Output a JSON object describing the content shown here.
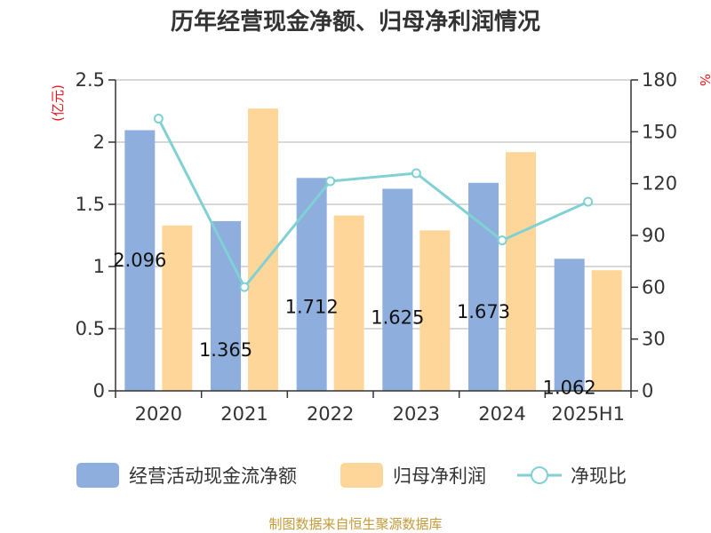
{
  "title": "历年经营现金净额、归母净利润情况",
  "source": "制图数据来自恒生聚源数据库",
  "colors": {
    "bar1": "#8eaedd",
    "bar2": "#ffd699",
    "line": "#80d0d4",
    "grid": "#cccccc",
    "axis": "#333333",
    "unit": "#e8141b",
    "source": "#c49a3a"
  },
  "chart_data": {
    "type": "bar",
    "title": "历年经营现金净额、归母净利润情况",
    "categories": [
      "2020",
      "2021",
      "2022",
      "2023",
      "2024",
      "2025H1"
    ],
    "left_axis": {
      "unit_label": "(亿元)",
      "ylim": [
        0,
        2.5
      ],
      "ticks": [
        "0",
        "0.5",
        "1",
        "1.5",
        "2",
        "2.5"
      ],
      "tick_values": [
        0,
        0.5,
        1,
        1.5,
        2,
        2.5
      ]
    },
    "right_axis": {
      "unit_label": "%",
      "ylim": [
        0,
        180
      ],
      "ticks": [
        "0",
        "30",
        "60",
        "90",
        "120",
        "150",
        "180"
      ],
      "tick_values": [
        0,
        30,
        60,
        90,
        120,
        150,
        180
      ]
    },
    "grid": true,
    "legend_position": "bottom",
    "series": [
      {
        "name": "经营活动现金流净额",
        "type": "bar",
        "axis": "left",
        "values": [
          2.096,
          1.365,
          1.712,
          1.625,
          1.673,
          1.062
        ],
        "labels": [
          "2.096",
          "1.365",
          "1.712",
          "1.625",
          "1.673",
          "1.062"
        ]
      },
      {
        "name": "归母净利润",
        "type": "bar",
        "axis": "left",
        "values": [
          1.33,
          2.27,
          1.41,
          1.29,
          1.92,
          0.97
        ]
      },
      {
        "name": "净现比",
        "type": "line",
        "axis": "right",
        "values": [
          157.6,
          60.1,
          121.4,
          126.0,
          87.1,
          109.5
        ]
      }
    ]
  }
}
